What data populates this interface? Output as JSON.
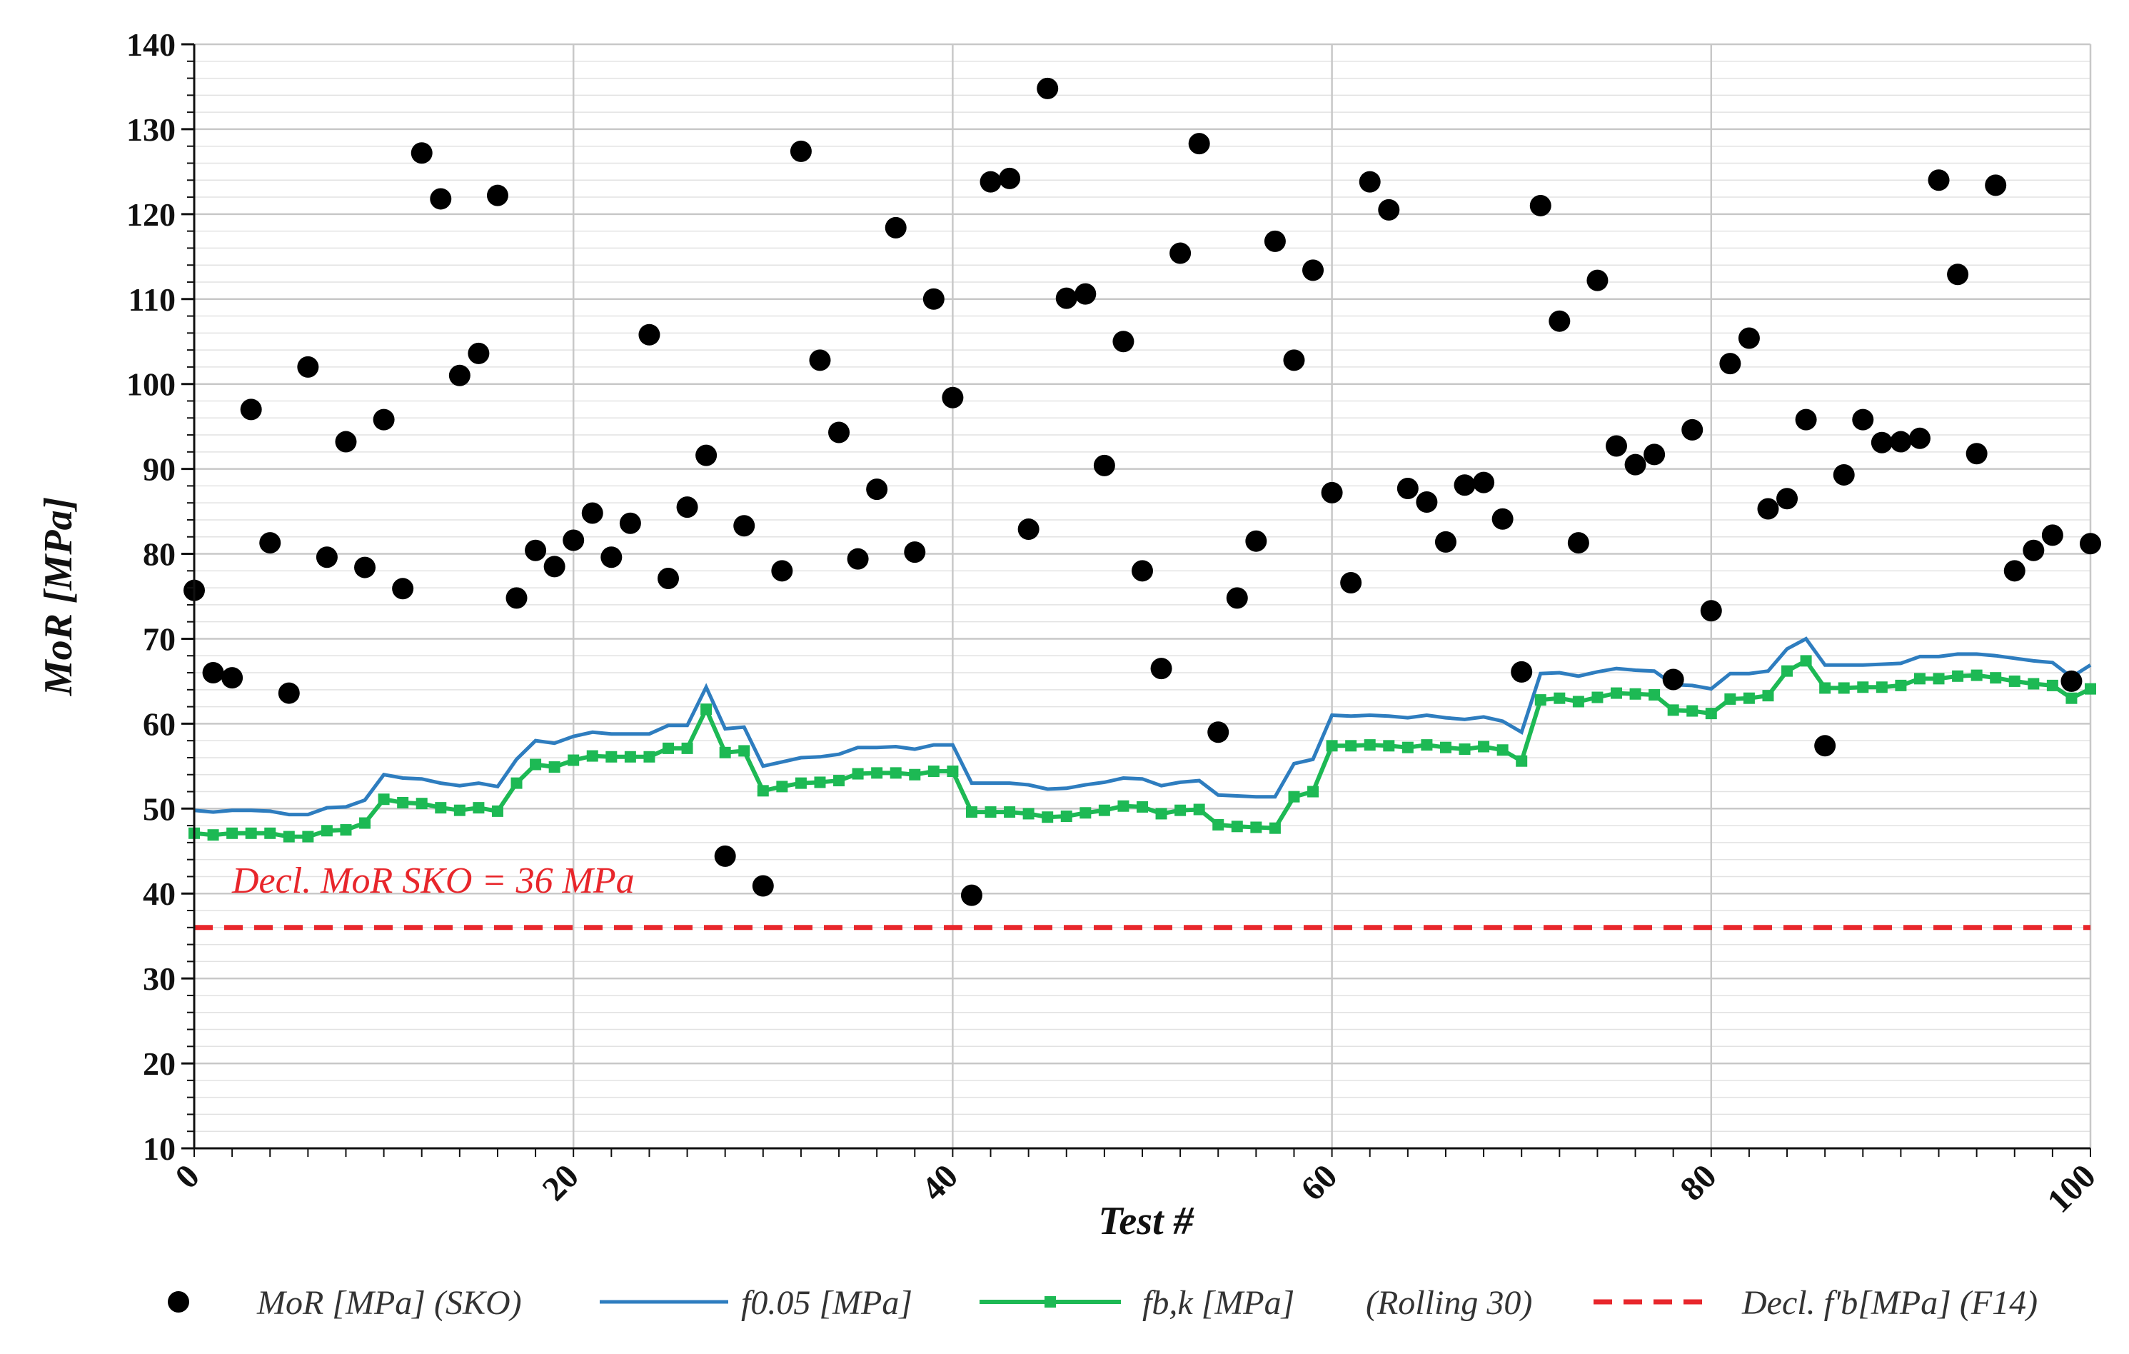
{
  "chart_data": {
    "type": "scatter",
    "xlabel": "Test #",
    "ylabel": "MoR [MPa]",
    "xlim": [
      0,
      100
    ],
    "ylim": [
      10,
      140
    ],
    "x_ticks": [
      0,
      20,
      40,
      60,
      80,
      100
    ],
    "y_ticks": [
      10,
      20,
      30,
      40,
      50,
      60,
      70,
      80,
      90,
      100,
      110,
      120,
      130,
      140
    ],
    "grid": true,
    "legend_position": "bottom",
    "annotation": "Decl. MoR SKO = 36 MPa",
    "colors": {
      "scatter": "#000000",
      "f005": "#2e7dbf",
      "fbk": "#1db954",
      "declared": "#e8262b",
      "grid": "#c8c8c8"
    },
    "legend": [
      {
        "series": "MoR [MPa] (SKO)",
        "label": "MoR [MPa] (SKO)"
      },
      {
        "series": "f0.05 [MPa]",
        "label": "f0.05 [MPa]"
      },
      {
        "series": "fb,k [MPa]",
        "label": "fb,k [MPa]"
      },
      {
        "series": "",
        "label": "(Rolling 30)"
      },
      {
        "series": "Decl. f'b[MPa] (F14)",
        "label": "Decl. f'b[MPa] (F14)"
      }
    ],
    "series": [
      {
        "name": "MoR [MPa] (SKO)",
        "type": "scatter",
        "x": [
          0,
          1,
          2,
          3,
          4,
          5,
          6,
          7,
          8,
          9,
          10,
          11,
          12,
          13,
          14,
          15,
          16,
          17,
          18,
          19,
          20,
          21,
          22,
          23,
          24,
          25,
          26,
          27,
          28,
          29,
          30,
          31,
          32,
          33,
          34,
          35,
          36,
          37,
          38,
          39,
          40,
          41,
          42,
          43,
          44,
          45,
          46,
          47,
          48,
          49,
          50,
          51,
          52,
          53,
          54,
          55,
          56,
          57,
          58,
          59,
          60,
          61,
          62,
          63,
          64,
          65,
          66,
          67,
          68,
          69,
          70,
          71,
          72,
          73,
          74,
          75,
          76,
          77,
          78,
          79,
          80,
          81,
          82,
          83,
          84,
          85,
          86,
          87,
          88,
          89,
          90,
          91,
          92,
          93,
          94,
          95,
          96,
          97,
          98,
          99,
          100
        ],
        "y": [
          75.7,
          66,
          65.4,
          97,
          81.3,
          63.6,
          102,
          79.6,
          93.2,
          78.4,
          95.8,
          75.9,
          127.2,
          121.8,
          101,
          103.6,
          122.2,
          74.8,
          80.4,
          78.5,
          81.6,
          84.8,
          79.6,
          83.6,
          105.8,
          77.1,
          85.5,
          91.6,
          44.4,
          83.3,
          40.9,
          78,
          127.4,
          102.8,
          94.3,
          79.4,
          87.6,
          118.4,
          80.2,
          110,
          98.4,
          39.8,
          123.8,
          124.2,
          82.9,
          134.8,
          110.1,
          110.6,
          90.4,
          105,
          78,
          66.5,
          115.4,
          128.3,
          59,
          74.8,
          81.5,
          116.8,
          102.8,
          113.4,
          87.2,
          76.6,
          123.8,
          120.5,
          87.7,
          86.1,
          81.4,
          88.1,
          88.4,
          84.1,
          66.1,
          121,
          107.4,
          81.3,
          112.2,
          92.7,
          90.5,
          91.7,
          65.2,
          94.6,
          73.3,
          102.4,
          105.4,
          85.3,
          86.5,
          95.8,
          57.4,
          89.3,
          95.8,
          93.1,
          93.2,
          93.6,
          124,
          112.9,
          91.8,
          123.4,
          78,
          80.4,
          82.2,
          65,
          81.2
        ]
      },
      {
        "name": "f0.05 [MPa]",
        "type": "line",
        "x": [
          0,
          1,
          2,
          3,
          4,
          5,
          6,
          7,
          8,
          9,
          10,
          11,
          12,
          13,
          14,
          15,
          16,
          17,
          18,
          19,
          20,
          21,
          22,
          23,
          24,
          25,
          26,
          27,
          28,
          29,
          30,
          31,
          32,
          33,
          34,
          35,
          36,
          37,
          38,
          39,
          40,
          41,
          42,
          43,
          44,
          45,
          46,
          47,
          48,
          49,
          50,
          51,
          52,
          53,
          54,
          55,
          56,
          57,
          58,
          59,
          60,
          61,
          62,
          63,
          64,
          65,
          66,
          67,
          68,
          69,
          70,
          71,
          72,
          73,
          74,
          75,
          76,
          77,
          78,
          79,
          80,
          81,
          82,
          83,
          84,
          85,
          86,
          87,
          88,
          89,
          90,
          91,
          92,
          93,
          94,
          95,
          96,
          97,
          98,
          99,
          100
        ],
        "y": [
          49.8,
          49.6,
          49.8,
          49.8,
          49.7,
          49.3,
          49.3,
          50.1,
          50.2,
          51,
          54,
          53.6,
          53.5,
          53,
          52.7,
          53,
          52.6,
          55.8,
          58,
          57.7,
          58.5,
          59,
          58.8,
          58.8,
          58.8,
          59.8,
          59.8,
          64.3,
          59.4,
          59.6,
          55,
          55.5,
          56,
          56.1,
          56.4,
          57.2,
          57.2,
          57.3,
          57,
          57.5,
          57.5,
          53,
          53,
          53,
          52.8,
          52.3,
          52.4,
          52.8,
          53.1,
          53.6,
          53.5,
          52.7,
          53.1,
          53.3,
          51.6,
          51.5,
          51.4,
          51.4,
          55.3,
          55.8,
          61,
          60.9,
          61,
          60.9,
          60.7,
          61,
          60.7,
          60.5,
          60.8,
          60.3,
          59,
          65.9,
          66,
          65.6,
          66.1,
          66.5,
          66.3,
          66.2,
          64.6,
          64.5,
          64.1,
          65.9,
          65.9,
          66.2,
          68.8,
          70,
          66.9,
          66.9,
          66.9,
          67,
          67.1,
          67.9,
          67.9,
          68.2,
          68.2,
          68,
          67.7,
          67.4,
          67.2,
          65.5,
          66.9
        ]
      },
      {
        "name": "fb,k [MPa]",
        "type": "line",
        "x": [
          0,
          1,
          2,
          3,
          4,
          5,
          6,
          7,
          8,
          9,
          10,
          11,
          12,
          13,
          14,
          15,
          16,
          17,
          18,
          19,
          20,
          21,
          22,
          23,
          24,
          25,
          26,
          27,
          28,
          29,
          30,
          31,
          32,
          33,
          34,
          35,
          36,
          37,
          38,
          39,
          40,
          41,
          42,
          43,
          44,
          45,
          46,
          47,
          48,
          49,
          50,
          51,
          52,
          53,
          54,
          55,
          56,
          57,
          58,
          59,
          60,
          61,
          62,
          63,
          64,
          65,
          66,
          67,
          68,
          69,
          70,
          71,
          72,
          73,
          74,
          75,
          76,
          77,
          78,
          79,
          80,
          81,
          82,
          83,
          84,
          85,
          86,
          87,
          88,
          89,
          90,
          91,
          92,
          93,
          94,
          95,
          96,
          97,
          98,
          99,
          100
        ],
        "y": [
          47.1,
          46.9,
          47.1,
          47.1,
          47.1,
          46.7,
          46.7,
          47.4,
          47.5,
          48.3,
          51.1,
          50.7,
          50.6,
          50.1,
          49.8,
          50.1,
          49.7,
          53,
          55.2,
          54.9,
          55.7,
          56.2,
          56.1,
          56.1,
          56.1,
          57.1,
          57.1,
          61.7,
          56.6,
          56.8,
          52.1,
          52.6,
          53,
          53.1,
          53.3,
          54.1,
          54.2,
          54.2,
          54,
          54.4,
          54.4,
          49.6,
          49.6,
          49.6,
          49.4,
          49,
          49.1,
          49.5,
          49.8,
          50.3,
          50.2,
          49.4,
          49.8,
          49.9,
          48.1,
          47.9,
          47.8,
          47.7,
          51.4,
          52,
          57.4,
          57.4,
          57.5,
          57.4,
          57.2,
          57.5,
          57.2,
          57,
          57.3,
          56.9,
          55.6,
          62.8,
          63,
          62.6,
          63.1,
          63.6,
          63.5,
          63.4,
          61.6,
          61.5,
          61.2,
          62.9,
          63,
          63.3,
          66.2,
          67.4,
          64.2,
          64.2,
          64.3,
          64.3,
          64.5,
          65.3,
          65.3,
          65.6,
          65.7,
          65.4,
          65,
          64.7,
          64.5,
          63,
          64.1
        ]
      },
      {
        "name": "Decl. f'b[MPa] (F14)",
        "type": "line",
        "x": [
          0,
          100
        ],
        "y": [
          36,
          36
        ]
      }
    ]
  }
}
